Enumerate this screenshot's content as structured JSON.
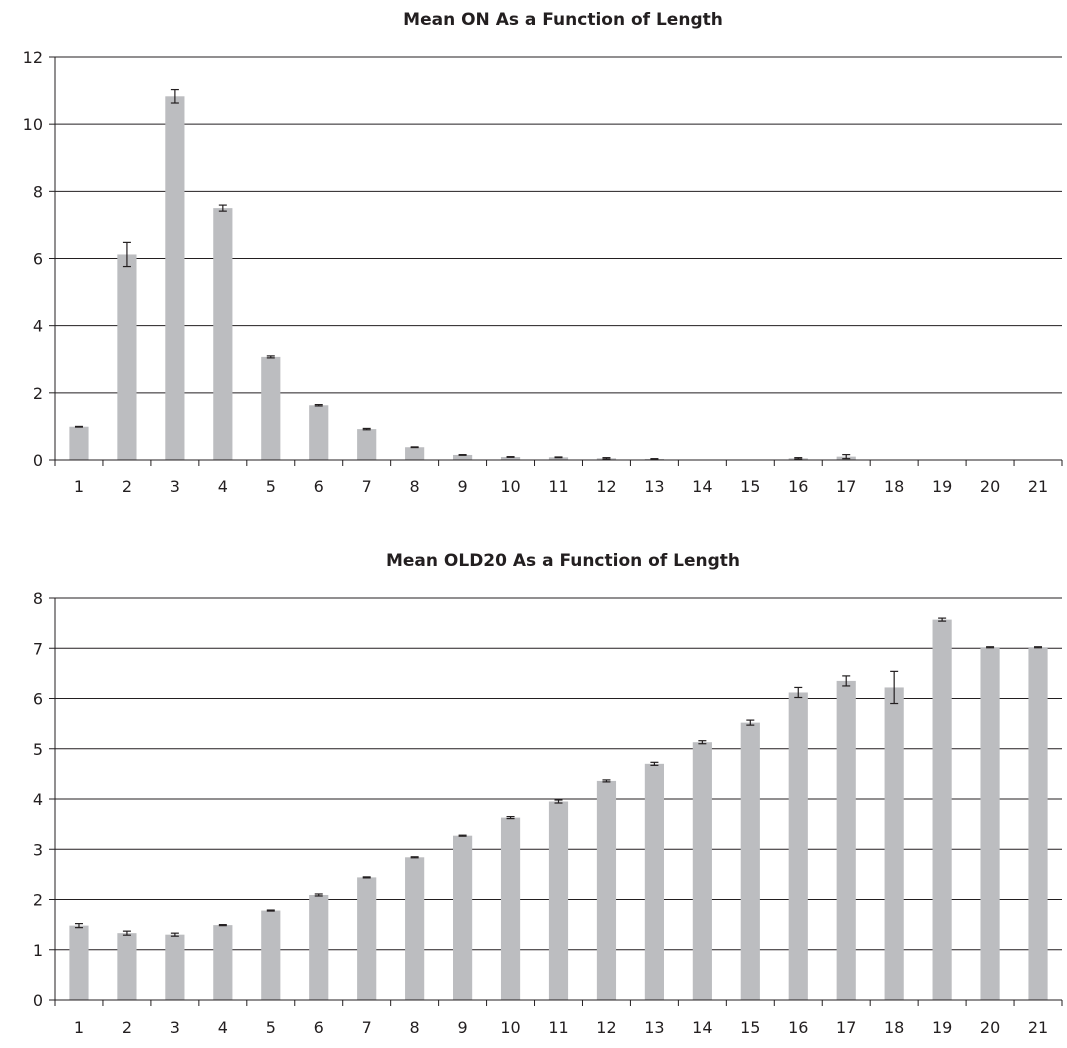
{
  "chart_data": [
    {
      "type": "bar",
      "title": "Mean ON As a Function of Length",
      "xlabel": "",
      "ylabel": "",
      "ylim": [
        0,
        12
      ],
      "yticks": [
        0,
        2,
        4,
        6,
        8,
        10,
        12
      ],
      "grid": true,
      "bar_color": "#bcbdc0",
      "categories": [
        "1",
        "2",
        "3",
        "4",
        "5",
        "6",
        "7",
        "8",
        "9",
        "10",
        "11",
        "12",
        "13",
        "14",
        "15",
        "16",
        "17",
        "18",
        "19",
        "20",
        "21"
      ],
      "values": [
        0.99,
        6.12,
        10.83,
        7.5,
        3.07,
        1.63,
        0.92,
        0.38,
        0.15,
        0.09,
        0.08,
        0.05,
        0.03,
        0,
        0,
        0.05,
        0.1,
        0,
        0,
        0,
        0
      ],
      "errors": [
        0.01,
        0.36,
        0.2,
        0.09,
        0.03,
        0.02,
        0.02,
        0.01,
        0.01,
        0.01,
        0.01,
        0.02,
        0.01,
        0,
        0,
        0.02,
        0.06,
        0,
        0,
        0,
        0
      ]
    },
    {
      "type": "bar",
      "title": "Mean OLD20 As a Function of Length",
      "xlabel": "",
      "ylabel": "",
      "ylim": [
        0,
        8
      ],
      "yticks": [
        0,
        1,
        2,
        3,
        4,
        5,
        6,
        7,
        8
      ],
      "grid": true,
      "bar_color": "#bcbdc0",
      "categories": [
        "1",
        "2",
        "3",
        "4",
        "5",
        "6",
        "7",
        "8",
        "9",
        "10",
        "11",
        "12",
        "13",
        "14",
        "15",
        "16",
        "17",
        "18",
        "19",
        "20",
        "21"
      ],
      "values": [
        1.48,
        1.33,
        1.3,
        1.49,
        1.78,
        2.09,
        2.44,
        2.84,
        3.27,
        3.63,
        3.95,
        4.36,
        4.7,
        5.13,
        5.52,
        6.12,
        6.35,
        6.22,
        7.57,
        7.02,
        7.02
      ],
      "errors": [
        0.04,
        0.04,
        0.03,
        0.01,
        0.01,
        0.02,
        0.01,
        0.01,
        0.01,
        0.02,
        0.03,
        0.02,
        0.03,
        0.03,
        0.05,
        0.1,
        0.1,
        0.32,
        0.03,
        0.01,
        0.01
      ]
    }
  ]
}
